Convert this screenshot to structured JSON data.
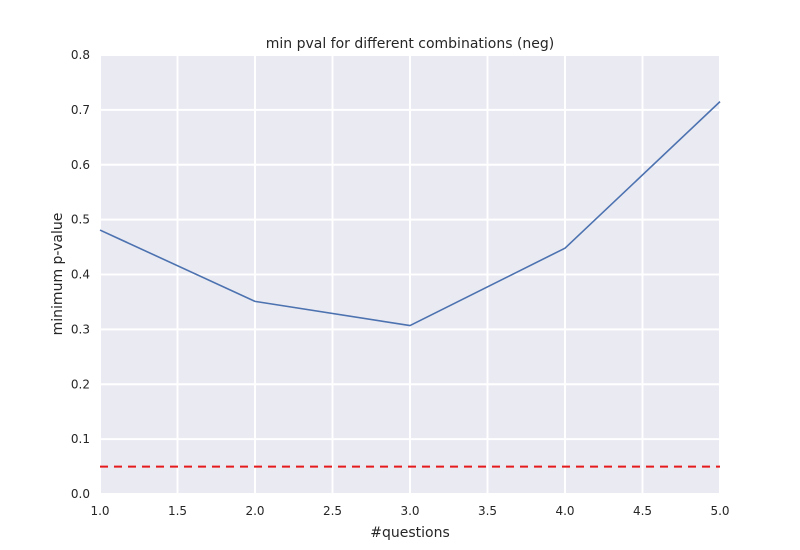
{
  "chart_data": {
    "type": "line",
    "title": "min pval for different combinations (neg)",
    "xlabel": "#questions",
    "ylabel": "minimum p-value",
    "xlim": [
      1.0,
      5.0
    ],
    "ylim": [
      0.0,
      0.8
    ],
    "xticks": [
      "1.0",
      "1.5",
      "2.0",
      "2.5",
      "3.0",
      "3.5",
      "4.0",
      "4.5",
      "5.0"
    ],
    "yticks": [
      "0.0",
      "0.1",
      "0.2",
      "0.3",
      "0.4",
      "0.5",
      "0.6",
      "0.7",
      "0.8"
    ],
    "grid": true,
    "series": [
      {
        "x": [
          1,
          2,
          3,
          4,
          5
        ],
        "y": [
          0.481,
          0.351,
          0.307,
          0.448,
          0.715
        ],
        "color": "#4c72b0",
        "style": "solid"
      }
    ],
    "reference_line": {
      "y": 0.05,
      "color": "#e41a1c",
      "style": "dashed"
    },
    "background_color": "#eaeaf2",
    "grid_color": "#ffffff"
  }
}
